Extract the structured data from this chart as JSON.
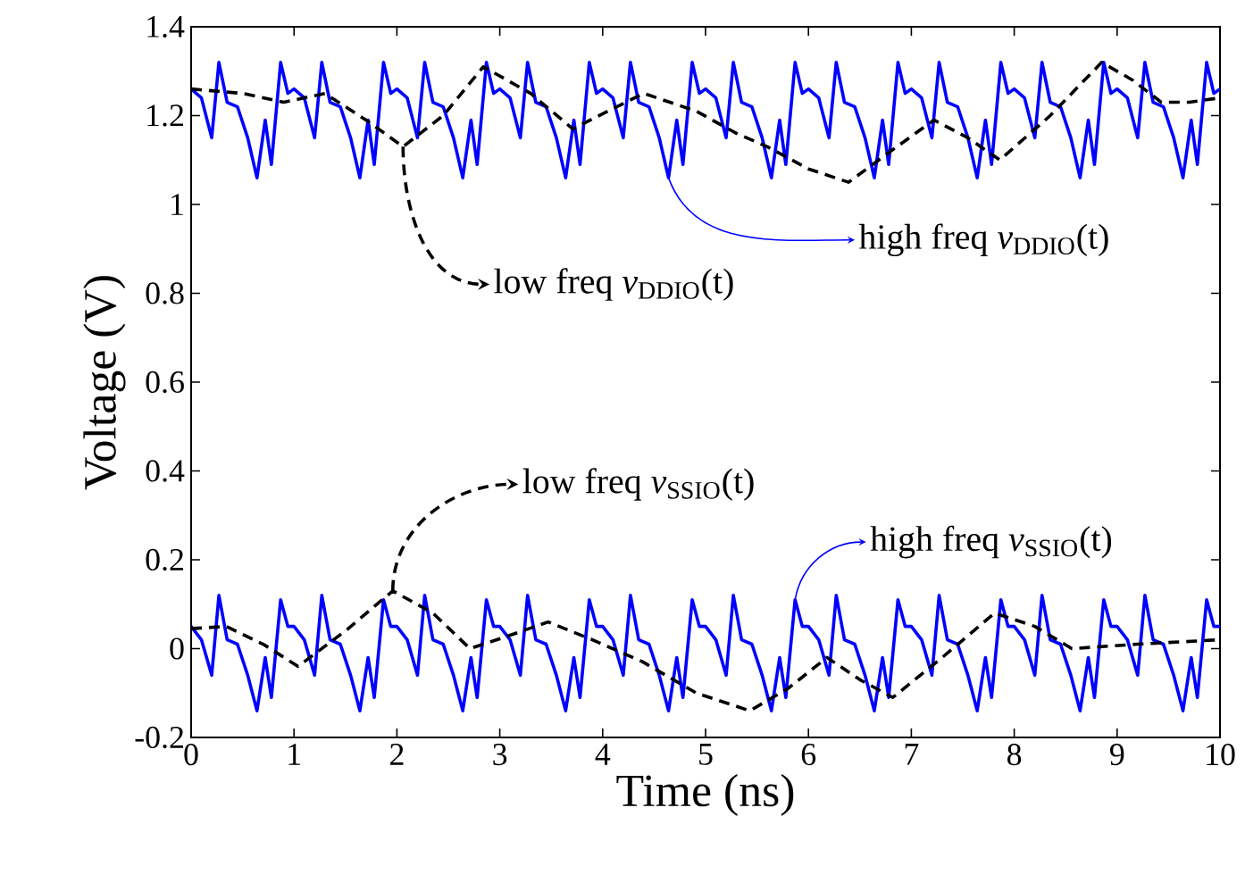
{
  "chart_data": {
    "type": "line",
    "xlabel": "Time (ns)",
    "ylabel": "Voltage (V)",
    "xlim": [
      0,
      10
    ],
    "ylim": [
      -0.2,
      1.4
    ],
    "xticks": [
      0,
      1,
      2,
      3,
      4,
      5,
      6,
      7,
      8,
      9,
      10
    ],
    "yticks": [
      -0.2,
      0,
      0.2,
      0.4,
      0.6,
      0.8,
      1,
      1.2,
      1.4
    ],
    "grid": false,
    "marker": "none",
    "series": [
      {
        "color": "#0000ff",
        "line_style": "solid",
        "x": [
          0,
          0.1,
          0.2,
          0.27,
          0.35,
          0.45,
          0.55,
          0.64,
          0.72,
          0.78,
          0.87,
          0.94,
          1,
          1.1,
          1.2,
          1.27,
          1.35,
          1.45,
          1.55,
          1.64,
          1.72,
          1.78,
          1.87,
          1.94,
          2,
          2.1,
          2.2,
          2.27,
          2.35,
          2.45,
          2.55,
          2.64,
          2.72,
          2.78,
          2.87,
          2.94,
          3,
          3.1,
          3.2,
          3.27,
          3.35,
          3.45,
          3.55,
          3.64,
          3.72,
          3.78,
          3.87,
          3.94,
          4,
          4.1,
          4.2,
          4.27,
          4.35,
          4.45,
          4.55,
          4.64,
          4.72,
          4.78,
          4.87,
          4.94,
          5,
          5.1,
          5.2,
          5.27,
          5.35,
          5.45,
          5.55,
          5.64,
          5.72,
          5.78,
          5.87,
          5.94,
          6,
          6.1,
          6.2,
          6.27,
          6.35,
          6.45,
          6.55,
          6.64,
          6.72,
          6.78,
          6.87,
          6.94,
          7,
          7.1,
          7.2,
          7.27,
          7.35,
          7.45,
          7.55,
          7.64,
          7.72,
          7.78,
          7.87,
          7.94,
          8,
          8.1,
          8.2,
          8.27,
          8.35,
          8.45,
          8.55,
          8.64,
          8.72,
          8.78,
          8.87,
          8.94,
          9,
          9.1,
          9.2,
          9.27,
          9.35,
          9.45,
          9.55,
          9.64,
          9.72,
          9.78,
          9.87,
          9.94,
          10
        ],
        "values": [
          1.26,
          1.24,
          1.15,
          1.32,
          1.23,
          1.22,
          1.15,
          1.06,
          1.19,
          1.09,
          1.32,
          1.25,
          1.26,
          1.24,
          1.15,
          1.32,
          1.23,
          1.22,
          1.15,
          1.06,
          1.19,
          1.09,
          1.32,
          1.25,
          1.26,
          1.24,
          1.15,
          1.32,
          1.23,
          1.22,
          1.15,
          1.06,
          1.19,
          1.09,
          1.32,
          1.25,
          1.26,
          1.24,
          1.15,
          1.32,
          1.23,
          1.22,
          1.15,
          1.06,
          1.19,
          1.09,
          1.32,
          1.25,
          1.26,
          1.24,
          1.15,
          1.32,
          1.23,
          1.22,
          1.15,
          1.06,
          1.19,
          1.09,
          1.32,
          1.25,
          1.26,
          1.24,
          1.15,
          1.32,
          1.23,
          1.22,
          1.15,
          1.06,
          1.19,
          1.09,
          1.32,
          1.25,
          1.26,
          1.24,
          1.15,
          1.32,
          1.23,
          1.22,
          1.15,
          1.06,
          1.19,
          1.09,
          1.32,
          1.25,
          1.26,
          1.24,
          1.15,
          1.32,
          1.23,
          1.22,
          1.15,
          1.06,
          1.19,
          1.09,
          1.32,
          1.25,
          1.26,
          1.24,
          1.15,
          1.32,
          1.23,
          1.22,
          1.15,
          1.06,
          1.19,
          1.09,
          1.32,
          1.25,
          1.26,
          1.24,
          1.15,
          1.32,
          1.23,
          1.22,
          1.15,
          1.06,
          1.19,
          1.09,
          1.32,
          1.25,
          1.26
        ]
      },
      {
        "color": "#000000",
        "line_style": "dashed",
        "x": [
          0,
          0.5,
          0.9,
          1.3,
          1.7,
          2.06,
          2.45,
          2.84,
          3.3,
          3.71,
          4.05,
          4.4,
          4.91,
          5.3,
          5.6,
          6.0,
          6.39,
          6.8,
          7.22,
          7.55,
          7.86,
          8.35,
          8.85,
          9.15,
          9.43,
          9.7,
          10
        ],
        "values": [
          1.26,
          1.25,
          1.23,
          1.25,
          1.19,
          1.13,
          1.2,
          1.31,
          1.25,
          1.17,
          1.21,
          1.25,
          1.21,
          1.16,
          1.13,
          1.08,
          1.05,
          1.12,
          1.19,
          1.15,
          1.1,
          1.2,
          1.32,
          1.28,
          1.23,
          1.23,
          1.24
        ]
      },
      {
        "color": "#0000ff",
        "line_style": "solid",
        "x": [
          0,
          0.1,
          0.2,
          0.27,
          0.35,
          0.45,
          0.55,
          0.64,
          0.72,
          0.78,
          0.87,
          0.94,
          1,
          1.1,
          1.2,
          1.27,
          1.35,
          1.45,
          1.55,
          1.64,
          1.72,
          1.78,
          1.87,
          1.94,
          2,
          2.1,
          2.2,
          2.27,
          2.35,
          2.45,
          2.55,
          2.64,
          2.72,
          2.78,
          2.87,
          2.94,
          3,
          3.1,
          3.2,
          3.27,
          3.35,
          3.45,
          3.55,
          3.64,
          3.72,
          3.78,
          3.87,
          3.94,
          4,
          4.1,
          4.2,
          4.27,
          4.35,
          4.45,
          4.55,
          4.64,
          4.72,
          4.78,
          4.87,
          4.94,
          5,
          5.1,
          5.2,
          5.27,
          5.35,
          5.45,
          5.55,
          5.64,
          5.72,
          5.78,
          5.87,
          5.94,
          6,
          6.1,
          6.2,
          6.27,
          6.35,
          6.45,
          6.55,
          6.64,
          6.72,
          6.78,
          6.87,
          6.94,
          7,
          7.1,
          7.2,
          7.27,
          7.35,
          7.45,
          7.55,
          7.64,
          7.72,
          7.78,
          7.87,
          7.94,
          8,
          8.1,
          8.2,
          8.27,
          8.35,
          8.45,
          8.55,
          8.64,
          8.72,
          8.78,
          8.87,
          8.94,
          9,
          9.1,
          9.2,
          9.27,
          9.35,
          9.45,
          9.55,
          9.64,
          9.72,
          9.78,
          9.87,
          9.94,
          10
        ],
        "values": [
          0.05,
          0.02,
          -0.06,
          0.12,
          0.02,
          0.01,
          -0.06,
          -0.14,
          -0.02,
          -0.11,
          0.11,
          0.05,
          0.05,
          0.02,
          -0.06,
          0.12,
          0.02,
          0.01,
          -0.06,
          -0.14,
          -0.02,
          -0.11,
          0.11,
          0.05,
          0.05,
          0.02,
          -0.06,
          0.12,
          0.02,
          0.01,
          -0.06,
          -0.14,
          -0.02,
          -0.11,
          0.11,
          0.05,
          0.05,
          0.02,
          -0.06,
          0.12,
          0.02,
          0.01,
          -0.06,
          -0.14,
          -0.02,
          -0.11,
          0.11,
          0.05,
          0.05,
          0.02,
          -0.06,
          0.12,
          0.02,
          0.01,
          -0.06,
          -0.14,
          -0.02,
          -0.11,
          0.11,
          0.05,
          0.05,
          0.02,
          -0.06,
          0.12,
          0.02,
          0.01,
          -0.06,
          -0.14,
          -0.02,
          -0.11,
          0.11,
          0.05,
          0.05,
          0.02,
          -0.06,
          0.12,
          0.02,
          0.01,
          -0.06,
          -0.14,
          -0.02,
          -0.11,
          0.11,
          0.05,
          0.05,
          0.02,
          -0.06,
          0.12,
          0.02,
          0.01,
          -0.06,
          -0.14,
          -0.02,
          -0.11,
          0.11,
          0.05,
          0.05,
          0.02,
          -0.06,
          0.12,
          0.02,
          0.01,
          -0.06,
          -0.14,
          -0.02,
          -0.11,
          0.11,
          0.05,
          0.05,
          0.02,
          -0.06,
          0.12,
          0.02,
          0.01,
          -0.06,
          -0.14,
          -0.02,
          -0.11,
          0.11,
          0.05,
          0.05
        ]
      },
      {
        "color": "#000000",
        "line_style": "dashed",
        "x": [
          0,
          0.34,
          0.7,
          1.04,
          1.5,
          1.96,
          2.35,
          2.71,
          3.1,
          3.47,
          3.9,
          4.39,
          4.91,
          5.43,
          5.8,
          6.18,
          6.5,
          6.82,
          7.3,
          7.81,
          8.2,
          8.56,
          9.2,
          10
        ],
        "values": [
          0.045,
          0.05,
          0.01,
          -0.04,
          0.04,
          0.13,
          0.08,
          0.0,
          0.03,
          0.06,
          0.02,
          -0.03,
          -0.1,
          -0.14,
          -0.09,
          -0.02,
          -0.07,
          -0.11,
          -0.02,
          0.08,
          0.05,
          0.0,
          0.01,
          0.02
        ]
      }
    ],
    "annotations": [
      {
        "text": "low freq *v*$_{DDIO}$(t)",
        "x": 2.06,
        "y": 1.13
      },
      {
        "text": "high freq *v*$_{DDIO}$(t)",
        "x": 4.64,
        "y": 1.06
      },
      {
        "text": "low freq *v*$_{SSIO}$(t)",
        "x": 1.96,
        "y": 0.13
      },
      {
        "text": "high freq *v*$_{SSIO}$(t)",
        "x": 5.87,
        "y": 0.11
      }
    ]
  }
}
